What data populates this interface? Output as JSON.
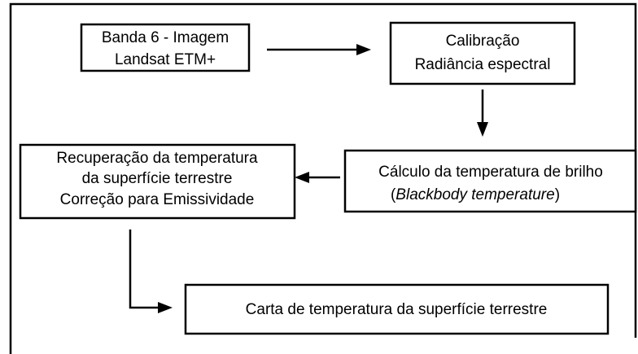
{
  "nodes": [
    {
      "lines": [
        "Banda 6 - Imagem",
        "Landsat ETM+"
      ]
    },
    {
      "lines": [
        "Calibração",
        "Radiância espectral"
      ]
    },
    {
      "lines": [
        "Cálculo da temperatura de brilho"
      ],
      "note": {
        "open": "(",
        "text": "Blackbody temperature",
        "close": ")"
      }
    },
    {
      "lines": [
        "Recuperação da temperatura",
        "da superfície terrestre",
        "Correção para Emissividade"
      ]
    },
    {
      "lines": [
        "Carta de temperatura da superfície terrestre"
      ]
    }
  ]
}
